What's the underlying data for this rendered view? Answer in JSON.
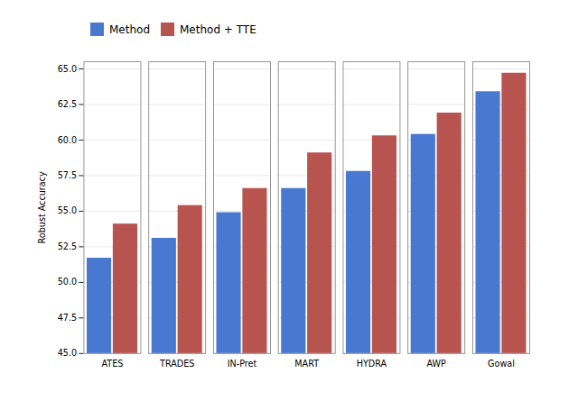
{
  "chart_data": {
    "type": "bar",
    "categories": [
      "ATES",
      "TRADES",
      "IN-Pret",
      "MART",
      "HYDRA",
      "AWP",
      "Gowal"
    ],
    "series": [
      {
        "name": "Method",
        "color": "#4878cf",
        "values": [
          51.7,
          53.1,
          54.9,
          56.6,
          57.8,
          60.4,
          63.4
        ]
      },
      {
        "name": "Method + TTE",
        "color": "#b85450",
        "values": [
          54.1,
          55.4,
          56.6,
          59.1,
          60.3,
          61.9,
          64.7
        ]
      }
    ],
    "ylabel": "Robust Accuracy",
    "ylim": [
      45.0,
      65.5
    ],
    "yticks": [
      {
        "value": 45,
        "label": "45.0"
      },
      47.5,
      {
        "value": 50,
        "label": "50.0"
      },
      52.5,
      {
        "value": 55,
        "label": "55.0"
      },
      57.5,
      {
        "value": 60,
        "label": "60.0"
      },
      62.5,
      {
        "value": 65,
        "label": "65.0"
      }
    ],
    "grid": true,
    "legend": "upper left"
  }
}
